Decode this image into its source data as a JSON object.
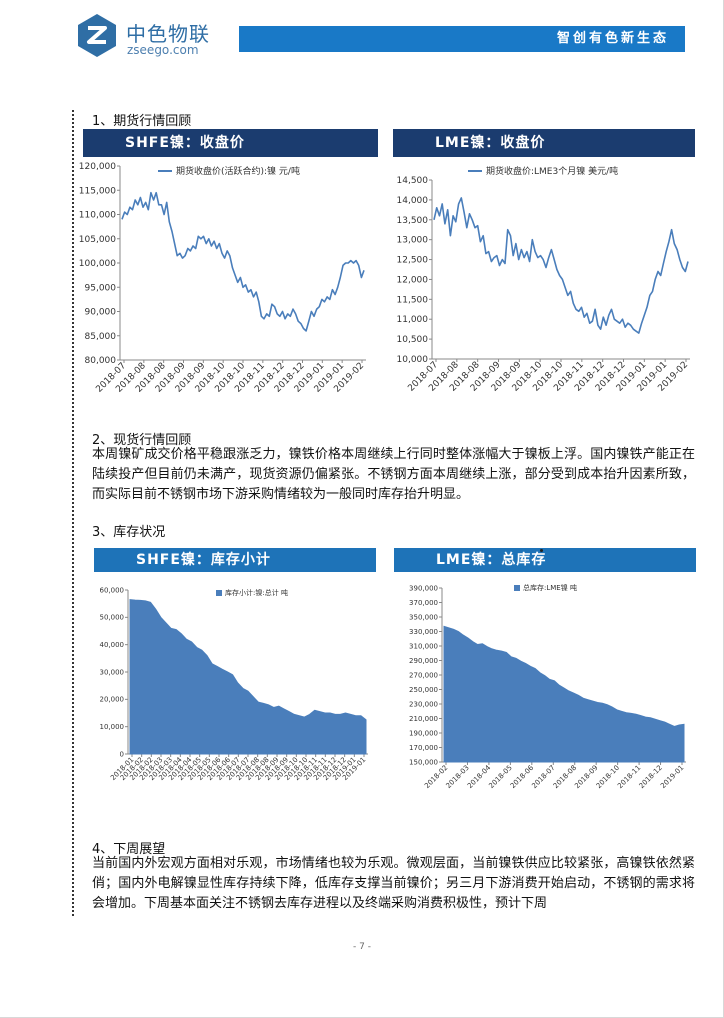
{
  "brand": {
    "name": "中色物联",
    "url": "zseego.com",
    "slogan": "智创有色新生态",
    "colors": {
      "dark_blue": "#1b3c6f",
      "blue": "#1979c7",
      "series": "#4a7ebb"
    }
  },
  "sections": {
    "futures_title": "1、期货行情回顾",
    "spot_title": "2、现货行情回顾",
    "spot_text": "本周镍矿成交价格平稳跟涨乏力，镍铁价格本周继续上行同时整体涨幅大于镍板上浮。国内镍铁产能正在陆续投产但目前仍未满产，现货资源仍偏紧张。不锈钢方面本周继续上涨，部分受到成本抬升因素所致，而实际目前不锈钢市场下游采购情绪较为一般同时库存抬升明显。",
    "inventory_title": "3、库存状况",
    "outlook_title": "4、下周展望",
    "outlook_text": "当前国内外宏观方面相对乐观，市场情绪也较为乐观。微观层面，当前镍铁供应比较紧张，高镍铁依然紧俏；国内外电解镍显性库存持续下降，低库存支撑当前镍价；另三月下游消费开始启动，不锈钢的需求将会增加。下周基本面关注不锈钢去库存进程以及终端采购消费积极性，预计下周"
  },
  "page_number": "- 7 -",
  "chart_data": [
    {
      "type": "line",
      "header": "SHFE镍：收盘价",
      "legend": "期货收盘价(活跃合约):镍 元/吨",
      "ylim": [
        80000,
        120000
      ],
      "yticks": [
        "80,000",
        "85,000",
        "90,000",
        "95,000",
        "100,000",
        "105,000",
        "110,000",
        "115,000",
        "120,000"
      ],
      "xticks": [
        "2018-07",
        "2018-08",
        "2018-08",
        "2018-09",
        "2018-09",
        "2018-10",
        "2018-10",
        "2018-11",
        "2018-12",
        "2018-12",
        "2019-01",
        "2019-01",
        "2019-02"
      ],
      "values": [
        109000,
        110500,
        110000,
        111500,
        111000,
        113000,
        112000,
        113500,
        111500,
        112500,
        111000,
        114500,
        113000,
        114500,
        112000,
        112000,
        110000,
        112500,
        108500,
        106500,
        104000,
        101500,
        102000,
        101000,
        101500,
        103000,
        102500,
        103500,
        103000,
        105500,
        105000,
        105500,
        104000,
        105000,
        103500,
        104500,
        103000,
        104000,
        102000,
        101000,
        102500,
        101500,
        99000,
        97500,
        96000,
        97000,
        95000,
        95500,
        94000,
        94500,
        93000,
        94000,
        92000,
        89000,
        88500,
        89500,
        89000,
        91500,
        91000,
        89500,
        89000,
        90000,
        88500,
        89500,
        89000,
        90500,
        89500,
        88000,
        87500,
        86500,
        86000,
        88000,
        90000,
        89000,
        90500,
        91000,
        92500,
        92000,
        93000,
        92500,
        94500,
        93500,
        95000,
        97000,
        99500,
        100000,
        100000,
        100500,
        100000,
        100500,
        99500,
        97000,
        98500
      ]
    },
    {
      "type": "line",
      "header": "LME镍：收盘价",
      "legend": "期货收盘价:LME3个月镍 美元/吨",
      "ylim": [
        10000,
        14500
      ],
      "yticks": [
        "10,000",
        "10,500",
        "11,000",
        "11,500",
        "12,000",
        "12,500",
        "13,000",
        "13,500",
        "14,000",
        "14,500"
      ],
      "xticks": [
        "2018-07",
        "2018-08",
        "2018-08",
        "2018-09",
        "2018-09",
        "2018-10",
        "2018-10",
        "2018-11",
        "2018-12",
        "2018-12",
        "2019-01",
        "2019-01",
        "2019-02"
      ],
      "values": [
        13500,
        13800,
        13600,
        13900,
        13400,
        13750,
        13100,
        13600,
        13450,
        13900,
        14050,
        13700,
        13300,
        13650,
        13500,
        13300,
        13350,
        12950,
        13100,
        12650,
        12700,
        12450,
        12550,
        12600,
        12350,
        12500,
        12400,
        13250,
        13100,
        12600,
        12900,
        12500,
        12750,
        12550,
        12700,
        12450,
        13000,
        12700,
        12550,
        12600,
        12500,
        12300,
        12550,
        12750,
        12500,
        12250,
        12100,
        12000,
        11800,
        11600,
        11700,
        11400,
        11250,
        11200,
        11300,
        11050,
        11150,
        10900,
        10950,
        11250,
        10850,
        10750,
        11050,
        10850,
        11100,
        11250,
        11000,
        10950,
        10900,
        11000,
        10800,
        10900,
        10850,
        10750,
        10700,
        10650,
        10900,
        11100,
        11300,
        11600,
        11700,
        12000,
        12200,
        12100,
        12400,
        12700,
        12950,
        13250,
        12900,
        12750,
        12500,
        12300,
        12200,
        12450
      ]
    },
    {
      "type": "area",
      "header": "SHFE镍：库存小计",
      "legend": "库存小计:镍:总计 吨",
      "ylim": [
        0,
        60000
      ],
      "yticks": [
        "0",
        "10,000",
        "20,000",
        "30,000",
        "40,000",
        "50,000",
        "60,000"
      ],
      "xticks": [
        "2018-01",
        "2018-02",
        "2018-02",
        "2018-03",
        "2018-03",
        "2018-04",
        "2018-04",
        "2018-05",
        "2018-05",
        "2018-06",
        "2018-06",
        "2018-07",
        "2018-07",
        "2018-08",
        "2018-08",
        "2018-09",
        "2018-09",
        "2018-10",
        "2018-10",
        "2018-11",
        "2018-11",
        "2018-12",
        "2018-12",
        "2019-01",
        "2019-01"
      ],
      "values": [
        56500,
        56300,
        56200,
        56000,
        55500,
        53000,
        50000,
        48000,
        46000,
        45500,
        44000,
        42000,
        41000,
        39000,
        38000,
        36000,
        33000,
        32000,
        31000,
        30000,
        29000,
        26000,
        24000,
        23000,
        21000,
        19000,
        18500,
        18000,
        17000,
        17500,
        16500,
        15500,
        14500,
        14000,
        13500,
        14500,
        16000,
        15500,
        15000,
        15000,
        14500,
        14500,
        15000,
        14500,
        14000,
        14000,
        12500
      ]
    },
    {
      "type": "area",
      "header": "LME镍：总库存",
      "legend": "总库存:LME镍 吨",
      "ylim": [
        150000,
        390000
      ],
      "yticks": [
        "150,000",
        "170,000",
        "190,000",
        "210,000",
        "230,000",
        "250,000",
        "270,000",
        "290,000",
        "310,000",
        "330,000",
        "350,000",
        "370,000",
        "390,000"
      ],
      "xticks": [
        "2018-02",
        "2018-03",
        "2018-04",
        "2018-05",
        "2018-06",
        "2018-07",
        "2018-08",
        "2018-09",
        "2018-10",
        "2018-11",
        "2018-12",
        "2019-01"
      ],
      "values": [
        337000,
        335000,
        333000,
        330000,
        325000,
        321000,
        316000,
        312000,
        313000,
        309000,
        306000,
        304000,
        303000,
        301000,
        295000,
        293000,
        289000,
        286000,
        282000,
        279000,
        273000,
        269000,
        264000,
        262000,
        256000,
        252000,
        248000,
        245000,
        242000,
        238000,
        236000,
        234000,
        232000,
        231000,
        229000,
        226000,
        222000,
        220000,
        218000,
        217000,
        216000,
        214000,
        212000,
        211000,
        209000,
        207000,
        205000,
        202000,
        199000,
        201000,
        202000
      ]
    }
  ]
}
